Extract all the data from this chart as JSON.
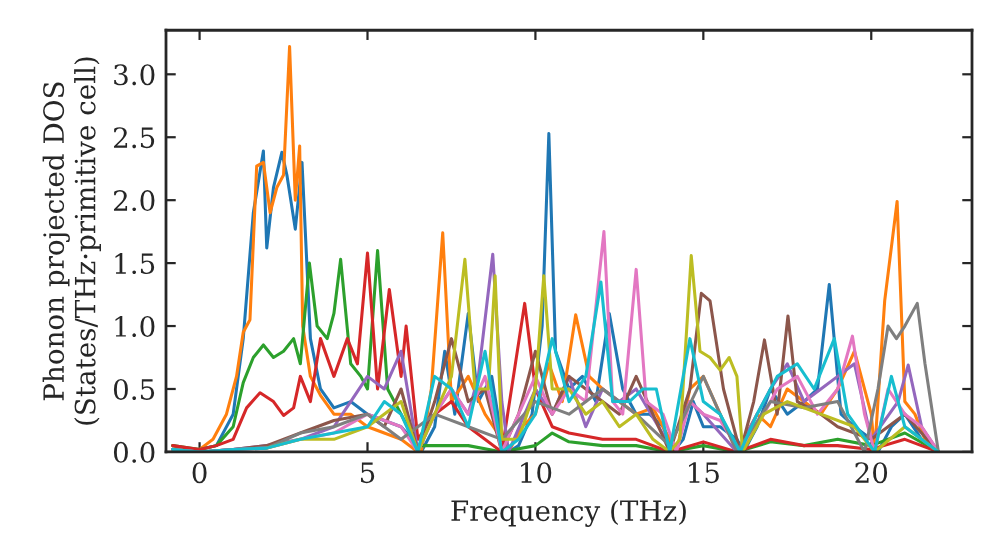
{
  "chart_data": {
    "type": "line",
    "xlabel": "Frequency (THz)",
    "ylabel": "Phonon projected DOS\n(States/THz·primitive cell)",
    "xlim": [
      -1,
      23
    ],
    "xticks": [
      0,
      5,
      10,
      15,
      20
    ],
    "ylim": [
      0,
      3.35
    ],
    "yticks": [
      {
        "value": 0,
        "label": "0.0"
      },
      {
        "value": 0.5,
        "label": "0.5"
      },
      {
        "value": 1,
        "label": "1.0"
      },
      {
        "value": 1.5,
        "label": "1.5"
      },
      {
        "value": 2,
        "label": "2.0"
      },
      {
        "value": 2.5,
        "label": "2.5"
      },
      {
        "value": 3,
        "label": "3.0"
      }
    ],
    "grid": false,
    "marker": "none",
    "line_style": "solid",
    "series": [
      {
        "color": "#1f77b4",
        "x": [
          0,
          0.5,
          1,
          1.3,
          1.6,
          1.9,
          2.0,
          2.2,
          2.45,
          2.6,
          2.85,
          3.05,
          3.3,
          3.6,
          4,
          4.5,
          5,
          5.5,
          6,
          6.5,
          6.6,
          7,
          7.3,
          7.6,
          8,
          8.3,
          8.7,
          9,
          9.2,
          9.5,
          9.9,
          10.2,
          10.4,
          10.6,
          11,
          11.4,
          11.8,
          12.2,
          12.6,
          13,
          13.4,
          13.8,
          14.1,
          14.4,
          14.7,
          15,
          15.5,
          16,
          16.2,
          16.6,
          17,
          17.5,
          18,
          18.4,
          18.75,
          19.1,
          19.5,
          20,
          20.2,
          20.6,
          21,
          21.5,
          22
        ],
        "values": [
          0.02,
          0.05,
          0.3,
          0.9,
          1.9,
          2.39,
          1.62,
          2.1,
          2.38,
          2.2,
          1.77,
          2.3,
          0.9,
          0.5,
          0.35,
          0.4,
          0.3,
          0.25,
          0.2,
          0.05,
          0.0,
          0.2,
          0.8,
          0.3,
          1.1,
          0.4,
          0.6,
          0.1,
          0.0,
          0.05,
          0.3,
          1.0,
          2.53,
          0.8,
          0.5,
          0.6,
          0.4,
          1.1,
          0.5,
          0.3,
          0.3,
          0.2,
          0.0,
          0.1,
          0.4,
          0.2,
          0.2,
          0.1,
          0.0,
          0.2,
          0.5,
          0.3,
          0.4,
          0.5,
          1.33,
          0.3,
          0.2,
          0.1,
          0.0,
          0.2,
          0.3,
          0.1,
          0.0
        ]
      },
      {
        "color": "#ff7f0e",
        "x": [
          -0.8,
          -0.5,
          0,
          0.4,
          0.8,
          1.1,
          1.3,
          1.5,
          1.7,
          1.9,
          2.1,
          2.3,
          2.5,
          2.68,
          2.85,
          2.98,
          3.07,
          3.3,
          3.6,
          4,
          4.5,
          5,
          5.5,
          6,
          6.5,
          6.6,
          6.9,
          7.24,
          7.5,
          8,
          8.5,
          9,
          9.2,
          9.6,
          10,
          10.4,
          10.8,
          11.2,
          11.6,
          12,
          12.5,
          13,
          13.5,
          14,
          14.2,
          14.6,
          15,
          15.5,
          16,
          16.2,
          16.6,
          17,
          17.5,
          18,
          18.5,
          19,
          19.5,
          20,
          20.1,
          20.4,
          20.77,
          21,
          21.3,
          21.6,
          22
        ],
        "values": [
          0.05,
          0.03,
          0.02,
          0.1,
          0.3,
          0.6,
          0.95,
          1.05,
          2.27,
          2.3,
          1.9,
          2.1,
          2.2,
          3.22,
          2.0,
          2.43,
          1.0,
          0.6,
          0.45,
          0.3,
          0.3,
          0.2,
          0.15,
          0.1,
          0.0,
          0.0,
          0.5,
          1.74,
          0.4,
          0.6,
          0.3,
          0.1,
          0.0,
          0.2,
          0.3,
          0.7,
          0.4,
          1.09,
          0.6,
          0.5,
          0.4,
          0.3,
          0.35,
          0.1,
          0.0,
          0.5,
          0.6,
          0.3,
          0.0,
          0.1,
          0.3,
          0.2,
          0.5,
          0.4,
          0.3,
          0.5,
          0.8,
          0.3,
          0.0,
          1.2,
          1.99,
          0.4,
          0.3,
          0.1,
          0.0
        ]
      },
      {
        "color": "#2ca02c",
        "x": [
          -0.8,
          0,
          0.5,
          1,
          1.3,
          1.6,
          1.9,
          2.2,
          2.5,
          2.8,
          3.0,
          3.27,
          3.5,
          3.8,
          4.0,
          4.2,
          4.5,
          4.8,
          5.0,
          5.3,
          5.6,
          6,
          6.5,
          7,
          8,
          9,
          10,
          10.5,
          11,
          12,
          13,
          14,
          15,
          16,
          17,
          18,
          19,
          20,
          21,
          22
        ],
        "values": [
          0.05,
          0.02,
          0.05,
          0.2,
          0.55,
          0.75,
          0.85,
          0.75,
          0.8,
          0.9,
          0.7,
          1.5,
          1.0,
          0.9,
          1.1,
          1.53,
          0.7,
          0.6,
          0.5,
          1.6,
          0.5,
          0.3,
          0.05,
          0.05,
          0.05,
          0.0,
          0.05,
          0.15,
          0.08,
          0.05,
          0.05,
          0.0,
          0.05,
          0.0,
          0.08,
          0.05,
          0.1,
          0.05,
          0.15,
          0.0
        ]
      },
      {
        "color": "#d62728",
        "x": [
          -0.8,
          0,
          0.5,
          1,
          1.4,
          1.8,
          2.2,
          2.5,
          2.8,
          3.0,
          3.3,
          3.6,
          4,
          4.4,
          4.7,
          5.0,
          5.3,
          5.65,
          6.0,
          6.15,
          6.5,
          7,
          7.5,
          8,
          9,
          9.68,
          10,
          10.5,
          11,
          12,
          13,
          14,
          15,
          16,
          17,
          18,
          19,
          20,
          21,
          22
        ],
        "values": [
          0.05,
          0.02,
          0.05,
          0.1,
          0.35,
          0.47,
          0.4,
          0.29,
          0.35,
          0.6,
          0.4,
          0.9,
          0.6,
          0.9,
          0.7,
          1.58,
          0.5,
          1.29,
          0.6,
          1.0,
          0.1,
          0.3,
          0.4,
          0.2,
          0.0,
          1.18,
          0.5,
          0.2,
          0.15,
          0.1,
          0.1,
          0.0,
          0.08,
          0.0,
          0.1,
          0.05,
          0.05,
          0.02,
          0.1,
          0.0
        ]
      },
      {
        "color": "#9467bd",
        "x": [
          -0.8,
          0,
          1,
          2,
          3,
          4,
          4.5,
          5,
          5.5,
          6,
          6.5,
          7,
          7.5,
          8,
          8.3,
          8.73,
          9,
          9.2,
          10,
          10.5,
          11,
          11.5,
          12,
          12.5,
          13,
          14,
          14.6,
          15,
          16,
          17,
          17.5,
          18,
          18.5,
          19,
          19.5,
          20,
          20.8,
          21.1,
          21.5,
          22
        ],
        "values": [
          0.02,
          0.0,
          0.02,
          0.05,
          0.1,
          0.2,
          0.4,
          0.6,
          0.5,
          0.8,
          0.0,
          0.3,
          0.5,
          0.3,
          0.6,
          1.57,
          0.4,
          0.0,
          0.5,
          0.3,
          0.6,
          0.2,
          0.5,
          0.4,
          0.5,
          0.05,
          0.4,
          0.3,
          0.0,
          0.5,
          0.7,
          0.4,
          0.5,
          0.6,
          0.7,
          0.1,
          0.4,
          0.69,
          0.2,
          0.0
        ]
      },
      {
        "color": "#8c564b",
        "x": [
          -0.8,
          0,
          1,
          2,
          3,
          4,
          5,
          5.5,
          6,
          6.5,
          7,
          7.5,
          8,
          8.5,
          9,
          9.5,
          10,
          10.5,
          11,
          11.5,
          12,
          12.5,
          13,
          13.5,
          14,
          14.6,
          14.94,
          15.2,
          15.6,
          16.1,
          16.5,
          16.82,
          17.2,
          17.52,
          17.8,
          18.5,
          19,
          20,
          21,
          22
        ],
        "values": [
          0.02,
          0.0,
          0.02,
          0.05,
          0.15,
          0.25,
          0.3,
          0.2,
          0.5,
          0.0,
          0.4,
          0.9,
          0.4,
          0.5,
          0.0,
          0.3,
          0.8,
          0.3,
          0.6,
          0.5,
          0.4,
          0.3,
          0.6,
          0.3,
          0.0,
          0.5,
          1.26,
          1.2,
          0.5,
          0.0,
          0.4,
          0.89,
          0.3,
          1.08,
          0.4,
          0.3,
          0.2,
          0.1,
          0.3,
          0.0
        ]
      },
      {
        "color": "#e377c2",
        "x": [
          -0.8,
          0,
          1,
          2,
          3,
          4,
          5,
          6,
          6.5,
          7,
          7.5,
          8,
          8.5,
          9,
          9.5,
          10,
          10.5,
          11,
          11.5,
          12.04,
          12.3,
          12.6,
          13.0,
          13.3,
          13.8,
          14.2,
          14.6,
          15,
          15.5,
          16.1,
          16.8,
          17.2,
          17.8,
          18.4,
          19.0,
          19.44,
          19.8,
          20.1,
          20.5,
          21,
          21.5,
          22
        ],
        "values": [
          0.02,
          0.0,
          0.02,
          0.03,
          0.1,
          0.15,
          0.3,
          0.2,
          0.0,
          0.3,
          0.5,
          0.3,
          0.6,
          0.0,
          0.3,
          0.6,
          0.3,
          0.5,
          0.4,
          1.75,
          0.4,
          0.3,
          1.45,
          0.4,
          0.3,
          0.0,
          0.4,
          0.3,
          0.25,
          0.0,
          0.3,
          0.5,
          0.6,
          0.3,
          0.5,
          0.92,
          0.3,
          0.0,
          0.5,
          0.3,
          0.2,
          0.0
        ]
      },
      {
        "color": "#7f7f7f",
        "x": [
          -0.8,
          0,
          1,
          2,
          3,
          4,
          5,
          6,
          7,
          8,
          9,
          10,
          11,
          12,
          13,
          14,
          15,
          16,
          17,
          18,
          19,
          19.8,
          20.2,
          20.5,
          20.75,
          21.0,
          21.37,
          21.6,
          22
        ],
        "values": [
          0.02,
          0.0,
          0.02,
          0.03,
          0.15,
          0.2,
          0.3,
          0.1,
          0.3,
          0.2,
          0.1,
          0.4,
          0.3,
          0.5,
          0.3,
          0.05,
          0.6,
          0.0,
          0.4,
          0.35,
          0.4,
          0.0,
          0.5,
          1.0,
          0.9,
          1.0,
          1.18,
          0.7,
          0.0
        ]
      },
      {
        "color": "#bcbd22",
        "x": [
          2,
          3,
          4,
          5,
          6,
          6.5,
          7,
          7.5,
          7.9,
          8.2,
          8.6,
          8.8,
          9.0,
          9.5,
          10.0,
          10.25,
          10.5,
          11,
          11.5,
          12,
          12.5,
          13,
          13.5,
          14.0,
          14.3,
          14.64,
          14.9,
          15.2,
          15.5,
          15.77,
          16.0,
          16.17,
          16.8,
          17.5,
          18.5,
          19.5,
          20.1,
          21,
          22
        ],
        "values": [
          0.03,
          0.1,
          0.1,
          0.2,
          0.4,
          0.0,
          0.3,
          0.6,
          1.53,
          0.5,
          0.5,
          1.4,
          0.1,
          0.1,
          0.5,
          1.4,
          0.5,
          0.5,
          0.3,
          0.4,
          0.2,
          0.3,
          0.1,
          0.0,
          0.1,
          1.56,
          0.8,
          0.75,
          0.65,
          0.75,
          0.6,
          0.0,
          0.3,
          0.4,
          0.3,
          0.2,
          0.0,
          0.2,
          0.0
        ]
      },
      {
        "color": "#17becf",
        "x": [
          -0.8,
          0,
          1,
          2,
          3,
          4,
          5,
          5.5,
          6,
          6.5,
          7,
          7.5,
          8,
          8.5,
          9,
          9.5,
          10,
          10.5,
          11,
          11.5,
          11.95,
          12.3,
          12.8,
          13.2,
          13.6,
          14.0,
          14.6,
          15,
          15.5,
          16.1,
          16.6,
          17.2,
          17.8,
          18.3,
          18.9,
          19.3,
          20.1,
          20.6,
          21,
          21.5,
          22
        ],
        "values": [
          0.02,
          0.0,
          0.02,
          0.03,
          0.1,
          0.15,
          0.2,
          0.4,
          0.3,
          0.0,
          0.6,
          0.5,
          0.2,
          0.8,
          0.0,
          0.1,
          0.3,
          0.9,
          0.4,
          0.6,
          1.35,
          0.4,
          0.4,
          0.5,
          0.5,
          0.0,
          0.9,
          0.4,
          0.3,
          0.0,
          0.3,
          0.6,
          0.7,
          0.5,
          0.9,
          0.3,
          0.0,
          0.6,
          0.2,
          0.1,
          0.0
        ]
      }
    ]
  }
}
